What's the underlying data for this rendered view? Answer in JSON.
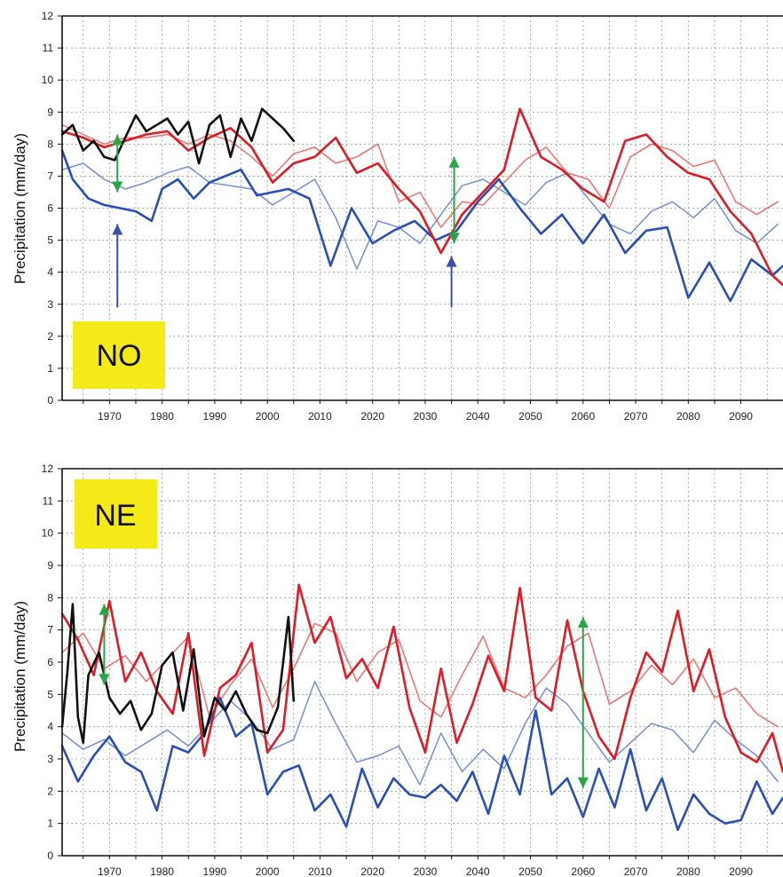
{
  "colors": {
    "observed": "#111111",
    "model_red_dark": "#e01b24",
    "model_red_light": "#ef6a6a",
    "model_blue_dark": "#2b4fb8",
    "model_blue_light": "#6f8ad6",
    "annotation_green": "#27a844",
    "annotation_blue": "#3b4fb0",
    "label_box": "#f4ea1a",
    "grid": "#9a9a9a"
  },
  "chart_data": [
    {
      "type": "line",
      "region_label": "NO",
      "ylabel": "Precipitation (mm/day)",
      "xlabel": "",
      "ylim": [
        0,
        12
      ],
      "xlim": [
        1961,
        2098
      ],
      "y_ticks": [
        "0",
        "1",
        "2",
        "3",
        "4",
        "5",
        "6",
        "7",
        "8",
        "9",
        "10",
        "11",
        "12"
      ],
      "x_ticks": [
        "1970",
        "1980",
        "1990",
        "2000",
        "2010",
        "2020",
        "2030",
        "2040",
        "2050",
        "2060",
        "2070",
        "2080",
        "2090"
      ],
      "grid": true,
      "annotations": {
        "green_arrows": [
          {
            "x": 1971.5,
            "y_from": 8.3,
            "y_to": 6.5
          },
          {
            "x": 2035.5,
            "y_from": 7.6,
            "y_to": 4.9
          }
        ],
        "blue_arrows": [
          {
            "x": 1971.5,
            "y_from": 2.9,
            "y_to": 5.5
          },
          {
            "x": 2035.0,
            "y_from": 2.9,
            "y_to": 4.5
          }
        ]
      },
      "series": [
        {
          "style": "observed",
          "x": [
            1961,
            1963,
            1965,
            1967,
            1969,
            1971,
            1973,
            1975,
            1977,
            1979,
            1981,
            1983,
            1985,
            1987,
            1989,
            1991,
            1993,
            1995,
            1997,
            1999,
            2001,
            2003,
            2005
          ],
          "y": [
            8.3,
            8.6,
            7.8,
            8.1,
            7.6,
            7.5,
            8.2,
            8.9,
            8.4,
            8.6,
            8.8,
            8.3,
            8.7,
            7.4,
            8.6,
            8.9,
            7.6,
            8.8,
            8.1,
            9.1,
            8.8,
            8.5,
            8.1
          ]
        },
        {
          "style": "red_dark",
          "x": [
            1961,
            1965,
            1969,
            1973,
            1977,
            1981,
            1985,
            1989,
            1993,
            1997,
            2001,
            2005,
            2009,
            2013,
            2017,
            2021,
            2025,
            2029,
            2033,
            2037,
            2041,
            2045,
            2048,
            2052,
            2056,
            2060,
            2064,
            2068,
            2072,
            2076,
            2080,
            2084,
            2088,
            2092,
            2096,
            2098
          ],
          "y": [
            8.4,
            8.2,
            7.9,
            8.1,
            8.3,
            8.4,
            7.8,
            8.2,
            8.5,
            7.9,
            6.8,
            7.4,
            7.6,
            8.2,
            7.1,
            7.4,
            6.6,
            5.9,
            4.6,
            5.8,
            6.5,
            7.2,
            9.1,
            7.6,
            7.2,
            6.6,
            6.2,
            8.1,
            8.3,
            7.6,
            7.1,
            6.9,
            5.9,
            5.2,
            3.9,
            3.6
          ]
        },
        {
          "style": "red_light",
          "x": [
            1961,
            1965,
            1969,
            1973,
            1977,
            1981,
            1985,
            1989,
            1993,
            1997,
            2001,
            2005,
            2009,
            2013,
            2017,
            2021,
            2025,
            2029,
            2033,
            2037,
            2041,
            2045,
            2049,
            2053,
            2057,
            2061,
            2065,
            2069,
            2073,
            2077,
            2081,
            2085,
            2089,
            2093,
            2097
          ],
          "y": [
            8.6,
            8.3,
            8.0,
            8.2,
            8.2,
            8.3,
            8.0,
            8.3,
            8.1,
            7.6,
            7.0,
            7.7,
            7.9,
            7.4,
            7.6,
            8.0,
            6.2,
            6.5,
            5.4,
            6.2,
            6.1,
            6.8,
            7.5,
            7.9,
            7.1,
            6.9,
            6.0,
            7.6,
            8.0,
            7.8,
            7.3,
            7.5,
            6.2,
            5.8,
            6.2
          ]
        },
        {
          "style": "blue_dark",
          "x": [
            1961,
            1963,
            1966,
            1969,
            1972,
            1975,
            1978,
            1980,
            1983,
            1986,
            1989,
            1992,
            1995,
            1998,
            2001,
            2004,
            2008,
            2012,
            2016,
            2020,
            2024,
            2028,
            2032,
            2036,
            2040,
            2044,
            2048,
            2052,
            2056,
            2060,
            2064,
            2068,
            2072,
            2076,
            2080,
            2084,
            2088,
            2092,
            2096,
            2098
          ],
          "y": [
            7.8,
            6.9,
            6.3,
            6.1,
            6.0,
            5.9,
            5.6,
            6.6,
            6.9,
            6.3,
            6.8,
            7.0,
            7.2,
            6.4,
            6.5,
            6.6,
            6.3,
            4.2,
            6.0,
            4.9,
            5.3,
            5.6,
            5.0,
            5.3,
            6.2,
            6.9,
            6.0,
            5.2,
            5.8,
            4.9,
            5.8,
            4.6,
            5.3,
            5.4,
            3.2,
            4.3,
            3.1,
            4.4,
            3.9,
            4.2
          ]
        },
        {
          "style": "blue_light",
          "x": [
            1961,
            1965,
            1969,
            1973,
            1977,
            1981,
            1985,
            1989,
            1993,
            1997,
            2001,
            2005,
            2009,
            2013,
            2017,
            2021,
            2025,
            2029,
            2033,
            2037,
            2041,
            2045,
            2049,
            2053,
            2057,
            2061,
            2065,
            2069,
            2073,
            2077,
            2081,
            2085,
            2089,
            2093,
            2097
          ],
          "y": [
            7.2,
            7.4,
            6.9,
            6.6,
            6.8,
            7.1,
            7.3,
            6.8,
            6.7,
            6.6,
            6.1,
            6.5,
            6.9,
            5.7,
            4.1,
            5.6,
            5.4,
            4.9,
            5.8,
            6.7,
            6.9,
            6.5,
            6.1,
            6.8,
            7.1,
            6.3,
            5.5,
            5.2,
            5.9,
            6.2,
            5.7,
            6.3,
            5.3,
            4.9,
            5.5
          ]
        }
      ]
    },
    {
      "type": "line",
      "region_label": "NE",
      "ylabel": "Precipitation (mm/day)",
      "xlabel": "",
      "ylim": [
        0,
        12
      ],
      "xlim": [
        1961,
        2098
      ],
      "y_ticks": [
        "0",
        "1",
        "2",
        "3",
        "4",
        "5",
        "6",
        "7",
        "8",
        "9",
        "10",
        "11",
        "12"
      ],
      "x_ticks": [
        "1970",
        "1980",
        "1990",
        "2000",
        "2010",
        "2020",
        "2030",
        "2040",
        "2050",
        "2060",
        "2070",
        "2080",
        "2090"
      ],
      "grid": true,
      "annotations": {
        "green_arrows": [
          {
            "x": 1969.0,
            "y_from": 7.8,
            "y_to": 5.3
          },
          {
            "x": 2060.0,
            "y_from": 7.4,
            "y_to": 2.1
          }
        ],
        "blue_arrows": []
      },
      "series": [
        {
          "style": "observed",
          "x": [
            1961,
            1962,
            1963,
            1964,
            1965,
            1966,
            1968,
            1970,
            1972,
            1974,
            1976,
            1978,
            1980,
            1982,
            1984,
            1986,
            1988,
            1990,
            1992,
            1994,
            1996,
            1998,
            2000,
            2002,
            2004,
            2005
          ],
          "y": [
            4.0,
            5.7,
            7.8,
            4.3,
            3.5,
            5.6,
            6.3,
            4.9,
            4.4,
            4.8,
            3.9,
            4.4,
            5.9,
            6.3,
            4.5,
            6.4,
            3.7,
            4.9,
            4.5,
            5.1,
            4.4,
            3.9,
            3.8,
            4.6,
            7.4,
            4.8
          ]
        },
        {
          "style": "red_dark",
          "x": [
            1961,
            1964,
            1967,
            1970,
            1973,
            1976,
            1979,
            1982,
            1985,
            1988,
            1991,
            1994,
            1997,
            2000,
            2003,
            2006,
            2009,
            2012,
            2015,
            2018,
            2021,
            2024,
            2027,
            2030,
            2033,
            2036,
            2039,
            2042,
            2045,
            2048,
            2051,
            2054,
            2057,
            2060,
            2063,
            2066,
            2069,
            2072,
            2075,
            2078,
            2081,
            2084,
            2087,
            2090,
            2093,
            2096,
            2098
          ],
          "y": [
            7.5,
            6.7,
            5.6,
            7.9,
            5.4,
            6.3,
            5.1,
            4.4,
            6.9,
            3.1,
            5.2,
            5.6,
            6.6,
            3.2,
            3.9,
            8.4,
            6.6,
            7.4,
            5.5,
            6.1,
            5.2,
            7.1,
            4.6,
            3.2,
            5.8,
            3.5,
            4.7,
            6.2,
            5.1,
            8.3,
            4.9,
            4.5,
            7.3,
            5.1,
            3.7,
            3.0,
            4.9,
            6.3,
            5.7,
            7.6,
            5.1,
            6.4,
            4.3,
            3.2,
            2.9,
            3.8,
            2.6
          ]
        },
        {
          "style": "red_light",
          "x": [
            1961,
            1965,
            1969,
            1973,
            1977,
            1981,
            1985,
            1989,
            1993,
            1997,
            2001,
            2005,
            2009,
            2013,
            2017,
            2021,
            2025,
            2029,
            2033,
            2037,
            2041,
            2045,
            2049,
            2053,
            2057,
            2061,
            2065,
            2069,
            2073,
            2077,
            2081,
            2085,
            2089,
            2093,
            2097
          ],
          "y": [
            6.3,
            6.9,
            5.8,
            6.2,
            5.4,
            6.1,
            6.8,
            4.3,
            5.3,
            6.1,
            4.6,
            5.8,
            7.2,
            6.9,
            5.4,
            6.3,
            6.7,
            4.8,
            4.3,
            5.6,
            6.8,
            5.2,
            4.9,
            5.6,
            6.5,
            6.9,
            4.7,
            5.1,
            5.9,
            5.3,
            6.1,
            4.9,
            5.2,
            4.4,
            4.0
          ]
        },
        {
          "style": "blue_dark",
          "x": [
            1961,
            1964,
            1967,
            1970,
            1973,
            1976,
            1979,
            1982,
            1985,
            1988,
            1991,
            1994,
            1997,
            2000,
            2003,
            2006,
            2009,
            2012,
            2015,
            2018,
            2021,
            2024,
            2027,
            2030,
            2033,
            2036,
            2039,
            2042,
            2045,
            2048,
            2051,
            2054,
            2057,
            2060,
            2063,
            2066,
            2069,
            2072,
            2075,
            2078,
            2081,
            2084,
            2087,
            2090,
            2093,
            2096,
            2098
          ],
          "y": [
            3.4,
            2.3,
            3.1,
            3.7,
            2.9,
            2.6,
            1.4,
            3.4,
            3.2,
            3.8,
            4.9,
            3.7,
            4.1,
            1.9,
            2.6,
            2.8,
            1.4,
            1.9,
            0.9,
            2.7,
            1.5,
            2.4,
            1.9,
            1.8,
            2.2,
            1.7,
            2.6,
            1.3,
            3.1,
            1.9,
            4.5,
            1.9,
            2.4,
            1.2,
            2.7,
            1.5,
            3.3,
            1.4,
            2.4,
            0.8,
            1.9,
            1.3,
            1.0,
            1.1,
            2.3,
            1.3,
            1.8
          ]
        },
        {
          "style": "blue_light",
          "x": [
            1961,
            1965,
            1969,
            1973,
            1977,
            1981,
            1985,
            1989,
            1993,
            1997,
            2001,
            2005,
            2009,
            2013,
            2017,
            2021,
            2025,
            2029,
            2033,
            2037,
            2041,
            2045,
            2049,
            2053,
            2057,
            2061,
            2065,
            2069,
            2073,
            2077,
            2081,
            2085,
            2089,
            2093,
            2097
          ],
          "y": [
            3.8,
            3.3,
            3.6,
            3.1,
            3.5,
            3.9,
            3.4,
            4.1,
            4.8,
            4.2,
            3.3,
            3.6,
            5.4,
            4.1,
            2.9,
            3.1,
            3.4,
            2.2,
            3.8,
            2.6,
            3.3,
            2.7,
            4.1,
            5.2,
            4.7,
            3.8,
            2.9,
            3.5,
            4.1,
            3.9,
            3.2,
            4.2,
            3.6,
            3.1,
            2.3
          ]
        }
      ]
    }
  ]
}
